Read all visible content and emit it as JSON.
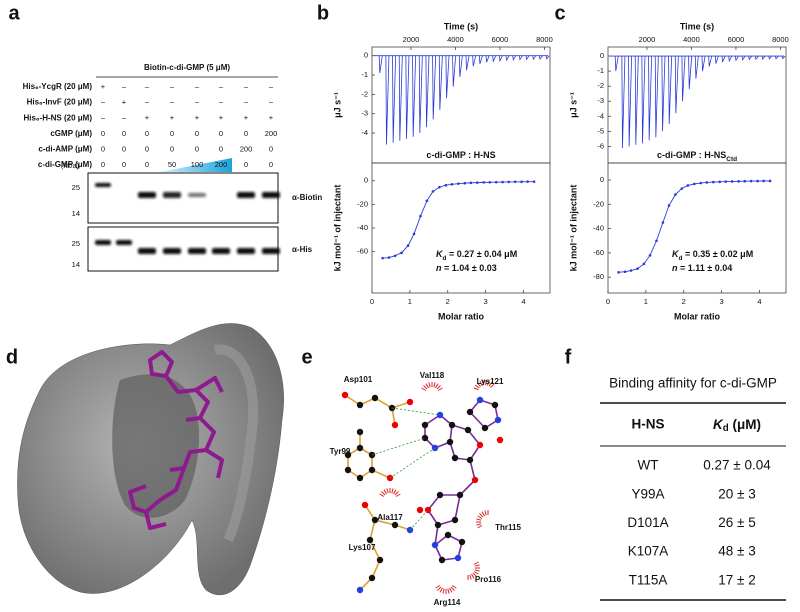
{
  "panel_labels": [
    "a",
    "b",
    "c",
    "d",
    "e",
    "f"
  ],
  "panel_a": {
    "header": "Biotin-c-di-GMP (5 μM)",
    "rows": [
      {
        "label": "His₆-YcgR (20 μM)",
        "cells": [
          "+",
          "–",
          "–",
          "–",
          "–",
          "–",
          "–",
          "–"
        ]
      },
      {
        "label": "His₆-InvF (20 μM)",
        "cells": [
          "–",
          "+",
          "–",
          "–",
          "–",
          "–",
          "–",
          "–"
        ]
      },
      {
        "label": "His₆-H-NS (20 μM)",
        "cells": [
          "–",
          "–",
          "+",
          "+",
          "+",
          "+",
          "+",
          "+"
        ]
      },
      {
        "label": "cGMP (μM)",
        "cells": [
          "0",
          "0",
          "0",
          "0",
          "0",
          "0",
          "0",
          "200"
        ]
      },
      {
        "label": "c-di-AMP (μM)",
        "cells": [
          "0",
          "0",
          "0",
          "0",
          "0",
          "0",
          "200",
          "0"
        ]
      },
      {
        "label": "c-di-GMP (μM)",
        "cells": [
          "0",
          "0",
          "0",
          "50",
          "100",
          "200",
          "0",
          "0"
        ]
      }
    ],
    "marker_unit": "(kDa)",
    "blots": [
      {
        "label": "α-Biotin",
        "markers": [
          "25",
          "14"
        ]
      },
      {
        "label": "α-His",
        "markers": [
          "25",
          "14"
        ]
      }
    ]
  },
  "chart_data": [
    {
      "type": "spikes",
      "xlabel": "Time (s)",
      "ylabel": "μJ s⁻¹",
      "color": "#2b3bd6",
      "x": [
        600,
        900,
        1200,
        1500,
        1800,
        2100,
        2400,
        2700,
        3000,
        3300,
        3600,
        3900,
        4200,
        4500,
        4800,
        5100,
        5400,
        5700,
        6000,
        6300,
        6600,
        6900,
        7200,
        7500,
        7800,
        8100
      ],
      "values": [
        -0.9,
        -4.6,
        -4.5,
        -4.4,
        -4.3,
        -4.2,
        -4.0,
        -3.7,
        -3.3,
        -2.8,
        -2.2,
        -1.6,
        -1.1,
        -0.75,
        -0.55,
        -0.42,
        -0.34,
        -0.29,
        -0.26,
        -0.23,
        -0.21,
        -0.2,
        -0.19,
        -0.18,
        -0.17,
        -0.16
      ],
      "xlim": [
        250,
        8250
      ],
      "ylim": [
        -5.55,
        0.45
      ],
      "xticks": [
        2000,
        4000,
        6000,
        8000
      ],
      "yticks": [
        0,
        -1,
        -2,
        -3,
        -4
      ]
    },
    {
      "type": "line",
      "title": {
        "text": "c-di-GMP : H-NS"
      },
      "xlabel": "Molar ratio",
      "ylabel": "kJ mol⁻¹ of injectant",
      "color": "#2b3bd6",
      "x": [
        0.28,
        0.45,
        0.61,
        0.78,
        0.95,
        1.11,
        1.28,
        1.45,
        1.61,
        1.78,
        1.95,
        2.11,
        2.28,
        2.45,
        2.61,
        2.78,
        2.95,
        3.11,
        3.28,
        3.45,
        3.61,
        3.78,
        3.95,
        4.11,
        4.28
      ],
      "values": [
        -65.5,
        -65,
        -63.5,
        -61,
        -55,
        -45,
        -30,
        -17,
        -9,
        -5.5,
        -3.8,
        -3,
        -2.5,
        -2.1,
        -1.8,
        -1.6,
        -1.4,
        -1.3,
        -1.2,
        -1.1,
        -1.0,
        -0.9,
        -0.9,
        -0.8,
        -0.8
      ],
      "xlim": [
        0,
        4.7
      ],
      "ylim": [
        -95,
        15
      ],
      "xticks": [
        0,
        1,
        2,
        3,
        4
      ],
      "yticks": [
        0,
        -20,
        -40,
        -60
      ],
      "annotations": [
        {
          "italic": "K",
          "subscript": "d",
          "text": " = 0.27 ± 0.04 μM"
        },
        {
          "italic": "n",
          "text": " = 1.04 ± 0.03"
        }
      ]
    },
    {
      "type": "spikes",
      "xlabel": "Time (s)",
      "ylabel": "μJ s⁻¹",
      "color": "#2b3bd6",
      "x": [
        600,
        900,
        1200,
        1500,
        1800,
        2100,
        2400,
        2700,
        3000,
        3300,
        3600,
        3900,
        4200,
        4500,
        4800,
        5100,
        5400,
        5700,
        6000,
        6300,
        6600,
        6900,
        7200,
        7500,
        7800,
        8100
      ],
      "values": [
        -1.0,
        -6.1,
        -6.0,
        -5.9,
        -5.8,
        -5.6,
        -5.4,
        -5.0,
        -4.5,
        -3.8,
        -3.0,
        -2.2,
        -1.5,
        -1.0,
        -0.7,
        -0.5,
        -0.4,
        -0.33,
        -0.28,
        -0.25,
        -0.23,
        -0.21,
        -0.2,
        -0.19,
        -0.18,
        -0.17
      ],
      "xlim": [
        250,
        8250
      ],
      "ylim": [
        -7.1,
        0.6
      ],
      "xticks": [
        2000,
        4000,
        6000,
        8000
      ],
      "yticks": [
        0,
        -1,
        -2,
        -3,
        -4,
        -5,
        -6
      ]
    },
    {
      "type": "line",
      "title": {
        "text": "c-di-GMP : H-NS",
        "subscript": "Ctd"
      },
      "xlabel": "Molar ratio",
      "ylabel": "kJ mol⁻¹ of injectant",
      "color": "#2b3bd6",
      "x": [
        0.28,
        0.45,
        0.61,
        0.78,
        0.95,
        1.11,
        1.28,
        1.45,
        1.61,
        1.78,
        1.95,
        2.11,
        2.28,
        2.45,
        2.61,
        2.78,
        2.95,
        3.11,
        3.28,
        3.45,
        3.61,
        3.78,
        3.95,
        4.11,
        4.28
      ],
      "values": [
        -76,
        -75.5,
        -74.5,
        -73,
        -69,
        -62,
        -50,
        -35,
        -21,
        -12,
        -7,
        -4.5,
        -3.2,
        -2.5,
        -2,
        -1.7,
        -1.5,
        -1.3,
        -1.2,
        -1.1,
        -1,
        -0.9,
        -0.9,
        -0.8,
        -0.8
      ],
      "xlim": [
        0,
        4.7
      ],
      "ylim": [
        -93,
        14
      ],
      "xticks": [
        0,
        1,
        2,
        3,
        4
      ],
      "yticks": [
        0,
        -20,
        -40,
        -60,
        -80
      ],
      "annotations": [
        {
          "italic": "K",
          "subscript": "d",
          "text": " = 0.35 ± 0.02 μM"
        },
        {
          "italic": "n",
          "text": " = 1.11 ± 0.04"
        }
      ]
    }
  ],
  "panel_e": {
    "residues": [
      "Asp101",
      "Val118",
      "Lys121",
      "Tyr99",
      "Ala117",
      "Thr115",
      "Lys107",
      "Pro116",
      "Arg114"
    ]
  },
  "panel_f": {
    "title": "Binding affinity for c-di-GMP",
    "header": [
      "H-NS",
      {
        "italic": "K",
        "subscript": "d",
        "text": " (μM)"
      }
    ],
    "rows": [
      [
        "WT",
        "0.27 ± 0.04"
      ],
      [
        "Y99A",
        "20 ± 3"
      ],
      [
        "D101A",
        "26 ± 5"
      ],
      [
        "K107A",
        "48 ± 3"
      ],
      [
        "T115A",
        "17 ± 2"
      ]
    ]
  }
}
